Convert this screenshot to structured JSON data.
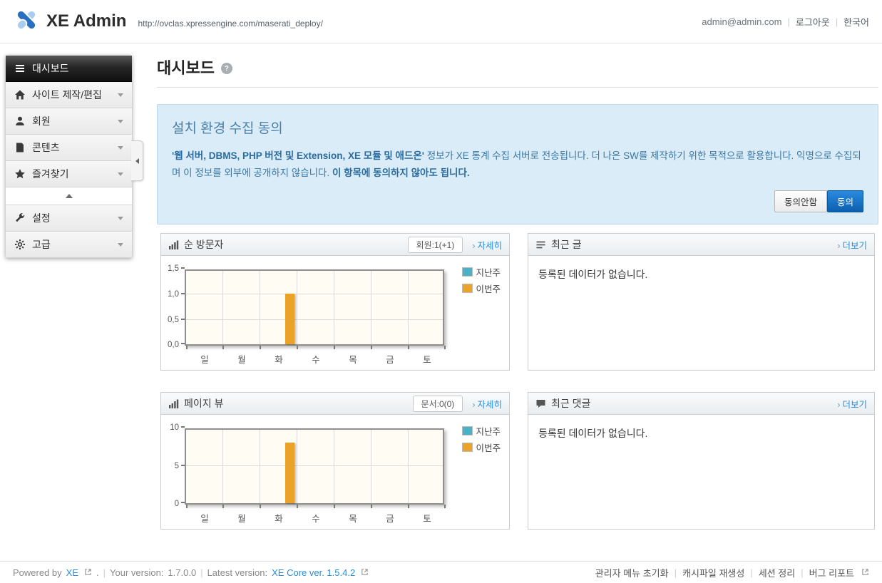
{
  "ui": {
    "sep": "|",
    "link_arrow": "›",
    "help_glyph": "?"
  },
  "header": {
    "logo_text": "XE Admin",
    "site_url": "http://ovclas.xpressengine.com/maserati_deploy/",
    "user_email": "admin@admin.com",
    "logout_label": "로그아웃",
    "language_label": "한국어"
  },
  "sidebar": {
    "items": [
      {
        "label": "대시보드",
        "icon": "dashboard-icon",
        "active": true
      },
      {
        "label": "사이트 제작/편집",
        "icon": "home-icon",
        "active": false
      },
      {
        "label": "회원",
        "icon": "user-icon",
        "active": false
      },
      {
        "label": "콘텐츠",
        "icon": "content-icon",
        "active": false
      },
      {
        "label": "즐겨찾기",
        "icon": "star-icon",
        "active": false
      },
      {
        "label": "설정",
        "icon": "wrench-icon",
        "active": false
      },
      {
        "label": "고급",
        "icon": "gear-icon",
        "active": false
      }
    ]
  },
  "page": {
    "title": "대시보드"
  },
  "notice": {
    "title": "설치 환경 수집 동의",
    "body_strong1": "'웹 서버, DBMS, PHP 버전 및 Extension, XE 모듈 및 애드온'",
    "body_mid": " 정보가 XE 통계 수집 서버로 전송됩니다. 더 나은 SW를 제작하기 위한 목적으로 활용합니다. 익명으로 수집되며 이 정보를 외부에 공개하지 않습니다. ",
    "body_strong2": "이 항목에 동의하지 않아도 됩니다.",
    "decline_label": "동의안함",
    "accept_label": "동의"
  },
  "panels": {
    "visitors": {
      "title": "순 방문자",
      "icon": "bar-chart-icon",
      "badge": "회원:1(+1)",
      "link": "자세히"
    },
    "recent_posts": {
      "title": "최근 글",
      "icon": "list-icon",
      "link": "더보기",
      "empty": "등록된 데이터가 없습니다."
    },
    "pageviews": {
      "title": "페이지 뷰",
      "icon": "bar-chart-icon",
      "badge": "문서:0(0)",
      "link": "자세히"
    },
    "recent_comments": {
      "title": "최근 댓글",
      "icon": "comment-icon",
      "link": "더보기",
      "empty": "등록된 데이터가 없습니다."
    }
  },
  "chart_data": [
    {
      "type": "bar",
      "title": "순 방문자",
      "categories": [
        "일",
        "월",
        "화",
        "수",
        "목",
        "금",
        "토"
      ],
      "series": [
        {
          "name": "지난주",
          "color": "#4bb2c5",
          "values": [
            0,
            0,
            0,
            0,
            0,
            0,
            0
          ]
        },
        {
          "name": "이번주",
          "color": "#eaa228",
          "values": [
            0,
            0,
            1,
            0,
            0,
            0,
            0
          ]
        }
      ],
      "ylim": [
        0,
        1.5
      ],
      "ytick_values": [
        0,
        0.5,
        1.0,
        1.5
      ],
      "ytick_labels": [
        "0,0",
        "0,5",
        "1,0",
        "1,5"
      ],
      "grid": true,
      "legend_position": "outside-right",
      "plot_background": "#fffdf3"
    },
    {
      "type": "bar",
      "title": "페이지 뷰",
      "categories": [
        "일",
        "월",
        "화",
        "수",
        "목",
        "금",
        "토"
      ],
      "series": [
        {
          "name": "지난주",
          "color": "#4bb2c5",
          "values": [
            0,
            0,
            0,
            0,
            0,
            0,
            0
          ]
        },
        {
          "name": "이번주",
          "color": "#eaa228",
          "values": [
            0,
            0,
            8,
            0,
            0,
            0,
            0
          ]
        }
      ],
      "ylim": [
        0,
        10
      ],
      "ytick_values": [
        0,
        5,
        10
      ],
      "ytick_labels": [
        "0",
        "5",
        "10"
      ],
      "grid": true,
      "legend_position": "outside-right",
      "plot_background": "#fffdf3"
    }
  ],
  "footer": {
    "powered_by": "Powered by",
    "xe_link": "XE",
    "dot": ".",
    "your_version_label": "Your version:",
    "your_version": "1.7.0.0",
    "latest_version_label": "Latest version:",
    "latest_version_link": "XE Core ver. 1.5.4.2",
    "links": [
      "관리자 메뉴 초기화",
      "캐시파일 재생성",
      "세션 정리",
      "버그 리포트"
    ]
  }
}
